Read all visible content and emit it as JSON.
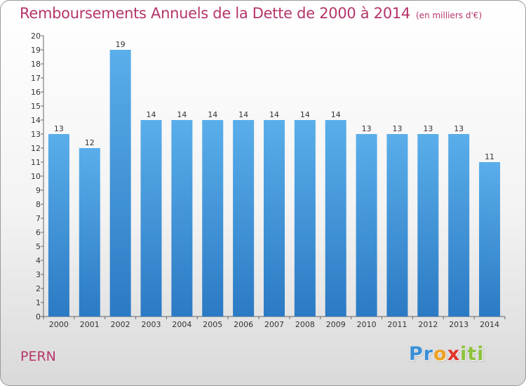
{
  "header": {
    "title": "Remboursements Annuels de la Dette de 2000 à 2014",
    "subtitle": "(en milliers d'€)"
  },
  "footer": {
    "commune": "PERN",
    "logo_letters": [
      {
        "ch": "P",
        "color": "#3a8fd8"
      },
      {
        "ch": "r",
        "color": "#3a8fd8"
      },
      {
        "ch": "o",
        "color": "#f0a020"
      },
      {
        "ch": "x",
        "color": "#e2332a"
      },
      {
        "ch": "i",
        "color": "#8cc23a"
      },
      {
        "ch": "t",
        "color": "#8cc23a"
      },
      {
        "ch": "i",
        "color": "#8cc23a"
      }
    ]
  },
  "colors": {
    "accent": "#b5346b",
    "bar_top": "#5aaeea",
    "bar_bottom": "#2b7ac4"
  },
  "chart_data": {
    "type": "bar",
    "categories": [
      "2000",
      "2001",
      "2002",
      "2003",
      "2004",
      "2005",
      "2006",
      "2007",
      "2008",
      "2009",
      "2010",
      "2011",
      "2012",
      "2013",
      "2014"
    ],
    "values": [
      13,
      12,
      19,
      14,
      14,
      14,
      14,
      14,
      14,
      14,
      13,
      13,
      13,
      13,
      11
    ],
    "ylim": [
      0,
      20
    ],
    "yticks": [
      0,
      1,
      2,
      3,
      4,
      5,
      6,
      7,
      8,
      9,
      10,
      11,
      12,
      13,
      14,
      15,
      16,
      17,
      18,
      19,
      20
    ],
    "grid": false,
    "legend": "none"
  }
}
